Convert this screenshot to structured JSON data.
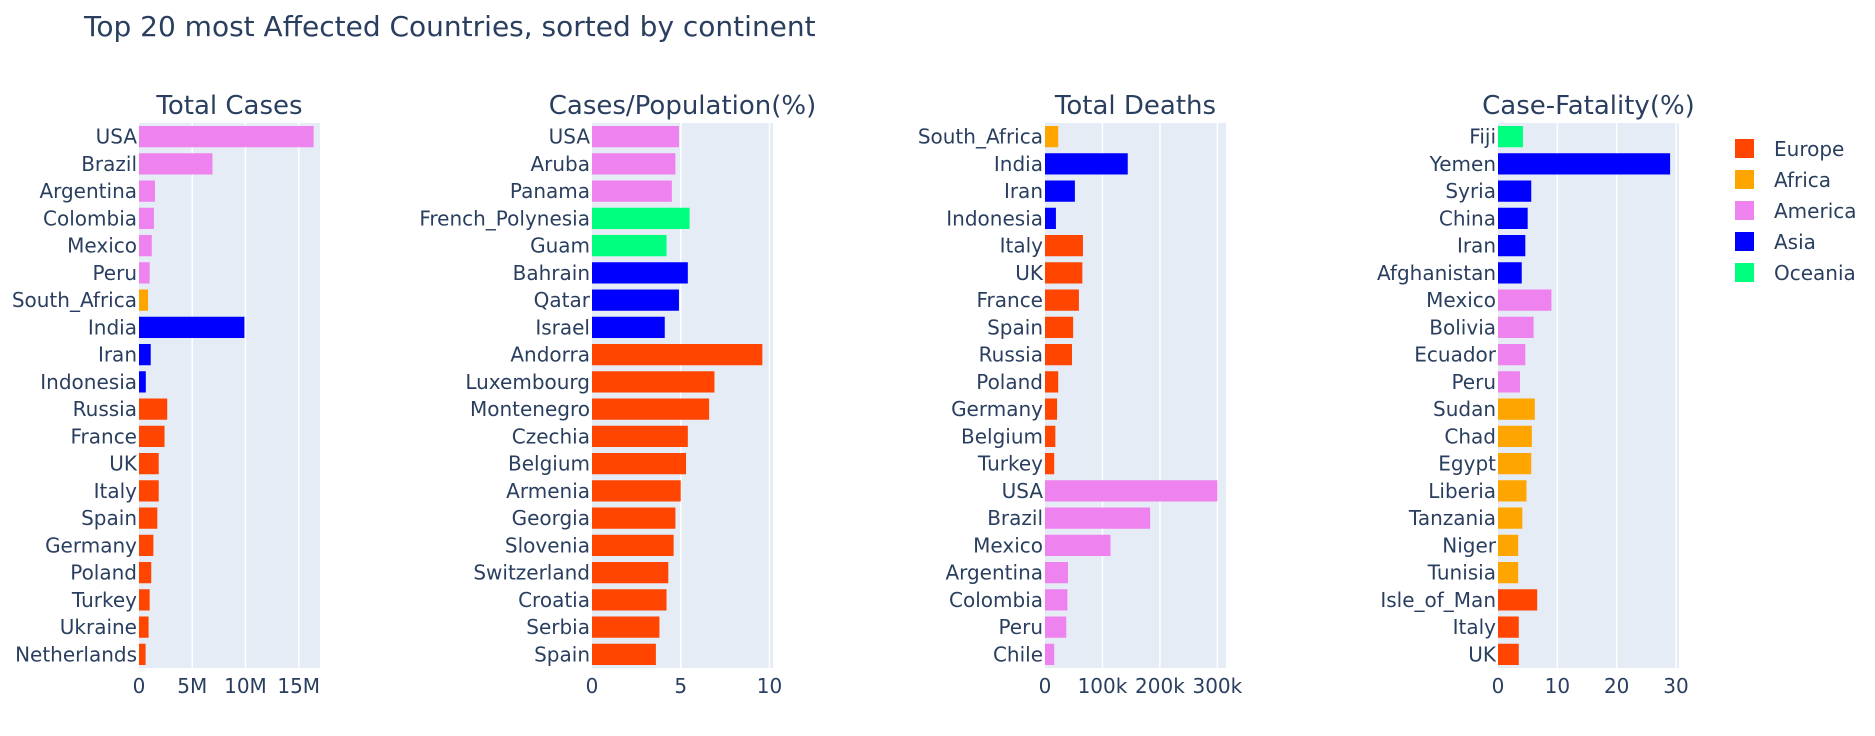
{
  "title": "Top 20 most Affected Countries, sorted by continent",
  "colors": {
    "Europe": "#ff4500",
    "Africa": "#ffa500",
    "America": "#ee82ee",
    "Asia": "#0000ff",
    "Oceania": "#00ff7f"
  },
  "legend": [
    {
      "label": "Europe",
      "color": "#ff4500"
    },
    {
      "label": "Africa",
      "color": "#ffa500"
    },
    {
      "label": "America",
      "color": "#ee82ee"
    },
    {
      "label": "Asia",
      "color": "#0000ff"
    },
    {
      "label": "Oceania",
      "color": "#00ff7f"
    }
  ],
  "chart_data": [
    {
      "type": "bar",
      "orientation": "horizontal",
      "title": "Total Cases",
      "xlim": [
        0,
        17000000
      ],
      "ticks": [
        {
          "v": 0,
          "t": "0"
        },
        {
          "v": 5000000,
          "t": "5M"
        },
        {
          "v": 10000000,
          "t": "10M"
        },
        {
          "v": 15000000,
          "t": "15M"
        }
      ],
      "grid": true,
      "categories": [
        "USA",
        "Brazil",
        "Argentina",
        "Colombia",
        "Mexico",
        "Peru",
        "South_Africa",
        "India",
        "Iran",
        "Indonesia",
        "Russia",
        "France",
        "UK",
        "Italy",
        "Spain",
        "Germany",
        "Poland",
        "Turkey",
        "Ukraine",
        "Netherlands"
      ],
      "values": [
        16400000,
        6900000,
        1500000,
        1400000,
        1200000,
        1000000,
        850000,
        9900000,
        1100000,
        640000,
        2650000,
        2400000,
        1850000,
        1850000,
        1720000,
        1350000,
        1150000,
        1000000,
        900000,
        620000
      ],
      "continents": [
        "America",
        "America",
        "America",
        "America",
        "America",
        "America",
        "Africa",
        "Asia",
        "Asia",
        "Asia",
        "Europe",
        "Europe",
        "Europe",
        "Europe",
        "Europe",
        "Europe",
        "Europe",
        "Europe",
        "Europe",
        "Europe"
      ]
    },
    {
      "type": "bar",
      "orientation": "horizontal",
      "title": "Cases/Population(%)",
      "xlim": [
        0,
        10.2
      ],
      "ticks": [
        {
          "v": 0,
          "t": "0"
        },
        {
          "v": 5,
          "t": "5"
        },
        {
          "v": 10,
          "t": "10"
        }
      ],
      "grid": true,
      "categories": [
        "USA",
        "Aruba",
        "Panama",
        "French_Polynesia",
        "Guam",
        "Bahrain",
        "Qatar",
        "Israel",
        "Andorra",
        "Luxembourg",
        "Montenegro",
        "Czechia",
        "Belgium",
        "Armenia",
        "Georgia",
        "Slovenia",
        "Switzerland",
        "Croatia",
        "Serbia",
        "Spain"
      ],
      "values": [
        4.9,
        4.7,
        4.5,
        5.5,
        4.2,
        5.4,
        4.9,
        4.1,
        9.6,
        6.9,
        6.6,
        5.4,
        5.3,
        5.0,
        4.7,
        4.6,
        4.3,
        4.2,
        3.8,
        3.6
      ],
      "continents": [
        "America",
        "America",
        "America",
        "Oceania",
        "Oceania",
        "Asia",
        "Asia",
        "Asia",
        "Europe",
        "Europe",
        "Europe",
        "Europe",
        "Europe",
        "Europe",
        "Europe",
        "Europe",
        "Europe",
        "Europe",
        "Europe",
        "Europe"
      ]
    },
    {
      "type": "bar",
      "orientation": "horizontal",
      "title": "Total Deaths",
      "xlim": [
        0,
        315000
      ],
      "ticks": [
        {
          "v": 0,
          "t": "0"
        },
        {
          "v": 100000,
          "t": "100k"
        },
        {
          "v": 200000,
          "t": "200k"
        },
        {
          "v": 300000,
          "t": "300k"
        }
      ],
      "grid": true,
      "categories": [
        "South_Africa",
        "India",
        "Iran",
        "Indonesia",
        "Italy",
        "UK",
        "France",
        "Spain",
        "Russia",
        "Poland",
        "Germany",
        "Belgium",
        "Turkey",
        "USA",
        "Brazil",
        "Mexico",
        "Argentina",
        "Colombia",
        "Peru",
        "Chile"
      ],
      "values": [
        23000,
        144000,
        52000,
        19000,
        66000,
        65000,
        59000,
        49000,
        47000,
        23000,
        21000,
        18000,
        16000,
        300000,
        183000,
        114000,
        40000,
        39000,
        37000,
        16000
      ],
      "continents": [
        "Africa",
        "Asia",
        "Asia",
        "Asia",
        "Europe",
        "Europe",
        "Europe",
        "Europe",
        "Europe",
        "Europe",
        "Europe",
        "Europe",
        "Europe",
        "America",
        "America",
        "America",
        "America",
        "America",
        "America",
        "America"
      ]
    },
    {
      "type": "bar",
      "orientation": "horizontal",
      "title": "Case-Fatality(%)",
      "xlim": [
        0,
        30.5
      ],
      "ticks": [
        {
          "v": 0,
          "t": "0"
        },
        {
          "v": 10,
          "t": "10"
        },
        {
          "v": 20,
          "t": "20"
        },
        {
          "v": 30,
          "t": "30"
        }
      ],
      "grid": true,
      "categories": [
        "Fiji",
        "Yemen",
        "Syria",
        "China",
        "Iran",
        "Afghanistan",
        "Mexico",
        "Bolivia",
        "Ecuador",
        "Peru",
        "Sudan",
        "Chad",
        "Egypt",
        "Liberia",
        "Tanzania",
        "Niger",
        "Tunisia",
        "Isle_of_Man",
        "Italy",
        "UK"
      ],
      "values": [
        4.2,
        29,
        5.6,
        5.0,
        4.6,
        4.0,
        9.0,
        6.0,
        4.6,
        3.7,
        6.2,
        5.7,
        5.6,
        4.8,
        4.1,
        3.4,
        3.4,
        6.6,
        3.5,
        3.5
      ],
      "continents": [
        "Oceania",
        "Asia",
        "Asia",
        "Asia",
        "Asia",
        "Asia",
        "America",
        "America",
        "America",
        "America",
        "Africa",
        "Africa",
        "Africa",
        "Africa",
        "Africa",
        "Africa",
        "Africa",
        "Europe",
        "Europe",
        "Europe"
      ]
    }
  ]
}
